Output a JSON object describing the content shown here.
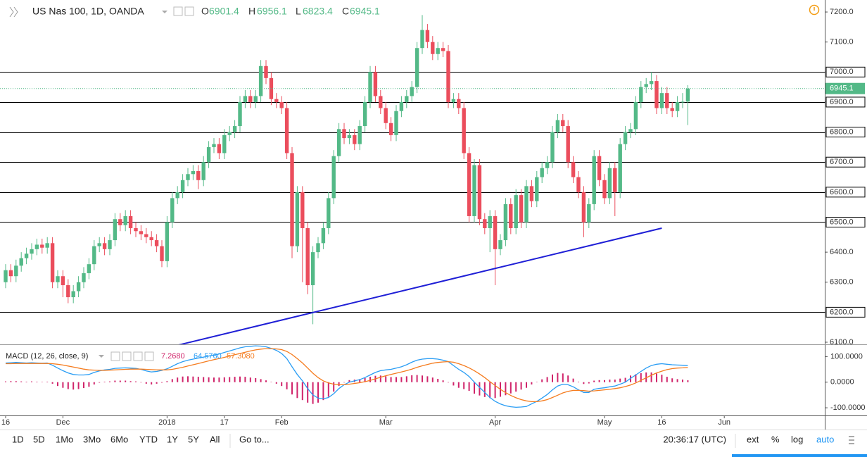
{
  "header": {
    "symbol": "US Nas 100, 1D, OANDA",
    "ohlc_prefixes": [
      "O",
      "H",
      "L",
      "C"
    ]
  },
  "chart_data": [
    {
      "type": "candlestick",
      "categories": [
        "16",
        null,
        null,
        null,
        null,
        null,
        null,
        null,
        null,
        null,
        null,
        "Dec",
        null,
        null,
        null,
        null,
        null,
        null,
        null,
        null,
        null,
        null,
        null,
        null,
        null,
        null,
        null,
        null,
        null,
        null,
        null,
        "2018",
        null,
        null,
        null,
        null,
        null,
        null,
        null,
        null,
        null,
        null,
        "17",
        null,
        null,
        null,
        null,
        null,
        null,
        null,
        null,
        null,
        null,
        "Feb",
        null,
        null,
        null,
        null,
        null,
        null,
        null,
        null,
        null,
        null,
        null,
        null,
        null,
        null,
        null,
        null,
        null,
        null,
        null,
        "Mar",
        null,
        null,
        null,
        null,
        null,
        null,
        null,
        null,
        null,
        null,
        null,
        null,
        null,
        null,
        null,
        null,
        null,
        null,
        null,
        null,
        "Apr",
        null,
        null,
        null,
        null,
        null,
        null,
        null,
        null,
        null,
        null,
        null,
        null,
        null,
        null,
        null,
        null,
        null,
        null,
        null,
        null,
        "May",
        null,
        null,
        null,
        null,
        null,
        null,
        null,
        null,
        null,
        null,
        "16",
        null,
        null,
        null,
        null,
        null,
        null,
        null,
        null,
        null,
        null,
        null,
        "Jun"
      ],
      "open": [
        6300,
        6340,
        6320,
        6355,
        6380,
        6395,
        6410,
        6425,
        6415,
        6430,
        6300,
        6320,
        6290,
        6250,
        6270,
        6300,
        6330,
        6360,
        6420,
        6430,
        6410,
        6440,
        6510,
        6490,
        6520,
        6480,
        6470,
        6460,
        6450,
        6440,
        6420,
        6370,
        6500,
        6580,
        6600,
        6640,
        6660,
        6670,
        6640,
        6700,
        6750,
        6760,
        6730,
        6790,
        6800,
        6820,
        6900,
        6920,
        6900,
        6920,
        7020,
        6980,
        6910,
        6900,
        6880,
        6730,
        6420,
        6600,
        6480,
        6290,
        6400,
        6430,
        6480,
        6580,
        6720,
        6810,
        6780,
        6790,
        6760,
        6820,
        6900,
        7000,
        6920,
        6880,
        6830,
        6790,
        6870,
        6900,
        6920,
        6950,
        7080,
        7140,
        7100,
        7060,
        7080,
        7070,
        6900,
        6910,
        6880,
        6730,
        6520,
        6690,
        6510,
        6480,
        6520,
        6410,
        6440,
        6560,
        6480,
        6590,
        6500,
        6620,
        6570,
        6650,
        6680,
        6700,
        6800,
        6840,
        6820,
        6700,
        6650,
        6600,
        6500,
        6560,
        6720,
        6640,
        6580,
        6680,
        6600,
        6760,
        6800,
        6810,
        6900,
        6950,
        6960,
        6970,
        6880,
        6930,
        6880,
        6870,
        6900,
        6901.4,
        null,
        null,
        null,
        null,
        null,
        null,
        null
      ],
      "high": [
        6360,
        6360,
        6375,
        6400,
        6415,
        6430,
        6445,
        6445,
        6450,
        6450,
        6340,
        6340,
        6310,
        6290,
        6320,
        6350,
        6380,
        6440,
        6450,
        6450,
        6460,
        6530,
        6530,
        6540,
        6540,
        6500,
        6490,
        6480,
        6470,
        6460,
        6440,
        6520,
        6600,
        6620,
        6660,
        6680,
        6690,
        6690,
        6720,
        6770,
        6780,
        6780,
        6810,
        6820,
        6840,
        6920,
        6940,
        6940,
        6940,
        7040,
        7040,
        7000,
        6930,
        6920,
        6900,
        6750,
        6620,
        6620,
        6500,
        6420,
        6450,
        6500,
        6600,
        6740,
        6830,
        6830,
        6810,
        6810,
        6840,
        6920,
        7020,
        7020,
        6940,
        6900,
        6850,
        6890,
        6920,
        6940,
        6970,
        7100,
        7190,
        7160,
        7120,
        7100,
        7100,
        7090,
        6930,
        6930,
        6900,
        6750,
        6710,
        6710,
        6530,
        6540,
        6540,
        6460,
        6580,
        6580,
        6610,
        6610,
        6640,
        6640,
        6670,
        6700,
        6720,
        6820,
        6860,
        6860,
        6840,
        6720,
        6670,
        6620,
        6580,
        6740,
        6740,
        6660,
        6700,
        6700,
        6780,
        6820,
        6830,
        6920,
        6970,
        6980,
        7000,
        6990,
        6950,
        6950,
        6900,
        6920,
        6930,
        6956.1,
        null,
        null,
        null,
        null,
        null,
        null,
        null
      ],
      "low": [
        6280,
        6300,
        6300,
        6335,
        6360,
        6375,
        6390,
        6395,
        6395,
        6280,
        6280,
        6250,
        6230,
        6230,
        6250,
        6280,
        6310,
        6340,
        6400,
        6390,
        6390,
        6420,
        6470,
        6470,
        6460,
        6450,
        6440,
        6430,
        6420,
        6400,
        6350,
        6350,
        6480,
        6560,
        6580,
        6620,
        6640,
        6610,
        6620,
        6680,
        6730,
        6710,
        6710,
        6770,
        6780,
        6800,
        6880,
        6880,
        6880,
        6900,
        6960,
        6890,
        6880,
        6860,
        6710,
        6380,
        6400,
        6300,
        6260,
        6160,
        6380,
        6410,
        6460,
        6560,
        6700,
        6760,
        6760,
        6740,
        6740,
        6800,
        6880,
        6900,
        6860,
        6810,
        6770,
        6770,
        6850,
        6880,
        6900,
        6930,
        7060,
        7080,
        7040,
        7040,
        7050,
        6880,
        6880,
        6860,
        6710,
        6500,
        6500,
        6490,
        6460,
        6400,
        6290,
        6390,
        6420,
        6460,
        6460,
        6480,
        6480,
        6550,
        6550,
        6630,
        6660,
        6680,
        6780,
        6800,
        6680,
        6630,
        6580,
        6450,
        6480,
        6540,
        6620,
        6560,
        6560,
        6520,
        6580,
        6740,
        6780,
        6790,
        6880,
        6930,
        6940,
        6860,
        6860,
        6860,
        6850,
        6850,
        6880,
        6823.4,
        null,
        null,
        null,
        null,
        null,
        null,
        null
      ],
      "close": [
        6340,
        6320,
        6355,
        6380,
        6395,
        6410,
        6425,
        6415,
        6430,
        6300,
        6320,
        6290,
        6250,
        6270,
        6300,
        6330,
        6360,
        6420,
        6430,
        6410,
        6440,
        6510,
        6490,
        6520,
        6480,
        6470,
        6460,
        6450,
        6440,
        6420,
        6370,
        6500,
        6580,
        6600,
        6640,
        6660,
        6670,
        6640,
        6700,
        6750,
        6760,
        6730,
        6790,
        6800,
        6820,
        6900,
        6920,
        6900,
        6920,
        7020,
        6980,
        6910,
        6900,
        6880,
        6730,
        6420,
        6600,
        6480,
        6290,
        6400,
        6430,
        6480,
        6580,
        6720,
        6810,
        6780,
        6790,
        6760,
        6820,
        6900,
        7000,
        6920,
        6880,
        6830,
        6790,
        6870,
        6900,
        6920,
        6950,
        7080,
        7140,
        7100,
        7060,
        7080,
        7070,
        6900,
        6910,
        6880,
        6730,
        6520,
        6690,
        6510,
        6480,
        6520,
        6410,
        6440,
        6560,
        6480,
        6590,
        6500,
        6620,
        6570,
        6650,
        6680,
        6700,
        6800,
        6840,
        6820,
        6700,
        6650,
        6600,
        6500,
        6560,
        6720,
        6640,
        6580,
        6680,
        6600,
        6760,
        6800,
        6810,
        6900,
        6950,
        6960,
        6970,
        6880,
        6930,
        6880,
        6870,
        6900,
        6901.4,
        6945.1,
        null,
        null,
        null,
        null,
        null,
        null,
        null
      ],
      "up_color": "#53b987",
      "down_color": "#eb4d5c",
      "ylim": [
        6093,
        7240
      ],
      "yticks": [
        {
          "value": 6100,
          "label": "6100.0"
        },
        {
          "value": 6200,
          "label": "6200.0"
        },
        {
          "value": 6300,
          "label": "6300.0"
        },
        {
          "value": 6400,
          "label": "6400.0"
        },
        {
          "value": 6500,
          "label": "6500.0"
        },
        {
          "value": 6600,
          "label": "6600.0"
        },
        {
          "value": 6700,
          "label": "6700.0"
        },
        {
          "value": 6800,
          "label": "6800.0"
        },
        {
          "value": 6900,
          "label": "6900.0"
        },
        {
          "value": 7000,
          "label": "7000.0"
        },
        {
          "value": 7100,
          "label": "7100.0"
        },
        {
          "value": 7200,
          "label": "7200.0"
        }
      ],
      "horizontal_lines": [
        7000,
        6900,
        6800,
        6700,
        6600,
        6500,
        6200
      ],
      "line_color": "#000000",
      "trendline": {
        "x": [
          33,
          126
        ],
        "y": [
          6090,
          6480
        ],
        "color": "#1f1fd6"
      }
    },
    {
      "type": "macd",
      "title": "MACD (12, 26, close, 9)",
      "histogram": {
        "color": "#d0246a",
        "legend": {
          "value": 7.268,
          "label": "7.2680"
        },
        "values": [
          3,
          4,
          4,
          3,
          2,
          3,
          2,
          1,
          2,
          -6,
          -15,
          -22,
          -27,
          -29,
          -27,
          -23,
          -18,
          -9,
          -2,
          2,
          3,
          6,
          6,
          6,
          4,
          3,
          -1,
          -6,
          -9,
          -6,
          -2,
          4,
          12,
          18,
          22,
          23,
          22,
          21,
          20,
          19,
          18,
          18,
          19,
          20,
          21,
          22,
          21,
          18,
          16,
          12,
          7,
          1,
          -6,
          -15,
          -28,
          -48,
          -62,
          -70,
          -80,
          -85,
          -80,
          -70,
          -57,
          -37,
          -15,
          0,
          8,
          10,
          12,
          16,
          21,
          25,
          26,
          23,
          20,
          20,
          20,
          23,
          27,
          28,
          26,
          23,
          18,
          13,
          7,
          0,
          -13,
          -22,
          -27,
          -34,
          -45,
          -52,
          -58,
          -62,
          -62,
          -57,
          -51,
          -44,
          -37,
          -29,
          -22,
          -9,
          1,
          11,
          20,
          30,
          36,
          34,
          26,
          14,
          2,
          -7,
          -5,
          6,
          8,
          8,
          10,
          10,
          14,
          17,
          26,
          31,
          35,
          38,
          38,
          34,
          29,
          21,
          15,
          12,
          10,
          7.268,
          null,
          null,
          null,
          null,
          null,
          null,
          null
        ]
      },
      "macd": {
        "color": "#2a9df4",
        "legend": {
          "value": 64.576,
          "label": "64.5760"
        },
        "values": [
          75,
          76,
          77,
          76,
          75,
          76,
          75,
          74,
          75,
          66,
          55,
          45,
          36,
          30,
          28,
          28,
          30,
          38,
          44,
          48,
          50,
          54,
          55,
          56,
          55,
          54,
          50,
          44,
          40,
          42,
          46,
          52,
          62,
          72,
          80,
          86,
          90,
          94,
          98,
          102,
          106,
          110,
          116,
          122,
          128,
          134,
          138,
          140,
          142,
          141,
          138,
          132,
          124,
          112,
          92,
          60,
          30,
          5,
          -25,
          -50,
          -62,
          -65,
          -60,
          -45,
          -25,
          -10,
          0,
          5,
          10,
          18,
          28,
          38,
          45,
          48,
          50,
          55,
          60,
          68,
          78,
          86,
          90,
          92,
          92,
          90,
          86,
          80,
          65,
          50,
          38,
          22,
          0,
          -20,
          -40,
          -60,
          -75,
          -85,
          -92,
          -96,
          -98,
          -97,
          -95,
          -85,
          -75,
          -62,
          -48,
          -30,
          -15,
          -8,
          -10,
          -18,
          -30,
          -40,
          -40,
          -28,
          -24,
          -22,
          -18,
          -15,
          -8,
          0,
          15,
          28,
          42,
          55,
          65,
          70,
          72,
          70,
          68,
          67,
          66,
          64.576,
          null,
          null,
          null,
          null,
          null,
          null,
          null
        ]
      },
      "signal": {
        "color": "#f57c1f",
        "legend": {
          "value": 57.308,
          "label": "57.3080"
        },
        "values": [
          72,
          72,
          73,
          73,
          73,
          73,
          73,
          73,
          73,
          72,
          70,
          67,
          63,
          59,
          55,
          51,
          48,
          47,
          46,
          46,
          47,
          48,
          49,
          50,
          51,
          51,
          51,
          50,
          49,
          48,
          48,
          48,
          50,
          54,
          58,
          63,
          68,
          73,
          78,
          83,
          88,
          92,
          97,
          102,
          107,
          112,
          117,
          122,
          126,
          129,
          131,
          131,
          130,
          127,
          120,
          108,
          92,
          75,
          55,
          35,
          18,
          5,
          -3,
          -8,
          -10,
          -10,
          -8,
          -5,
          -2,
          2,
          7,
          13,
          19,
          25,
          30,
          35,
          40,
          45,
          51,
          58,
          64,
          69,
          74,
          77,
          79,
          80,
          78,
          72,
          65,
          56,
          45,
          32,
          18,
          2,
          -13,
          -28,
          -41,
          -52,
          -61,
          -68,
          -73,
          -76,
          -76,
          -73,
          -68,
          -60,
          -51,
          -42,
          -36,
          -32,
          -32,
          -33,
          -35,
          -34,
          -32,
          -30,
          -28,
          -25,
          -22,
          -17,
          -11,
          -3,
          7,
          17,
          27,
          36,
          43,
          49,
          53,
          55,
          56,
          57.308,
          null,
          null,
          null,
          null,
          null,
          null,
          null
        ]
      },
      "ylim": [
        -130,
        145
      ],
      "yticks": [
        {
          "value": 100,
          "label": "100.0000"
        },
        {
          "value": 0,
          "label": "0.0000"
        },
        {
          "value": -100,
          "label": "-100.0000"
        }
      ]
    }
  ],
  "toolbar": {
    "ranges": [
      "1D",
      "5D",
      "1Mo",
      "3Mo",
      "6Mo",
      "YTD",
      "1Y",
      "5Y",
      "All"
    ],
    "goto": "Go to...",
    "clock": "20:36:17 (UTC)",
    "options": [
      "ext",
      "%",
      "log",
      "auto"
    ]
  }
}
